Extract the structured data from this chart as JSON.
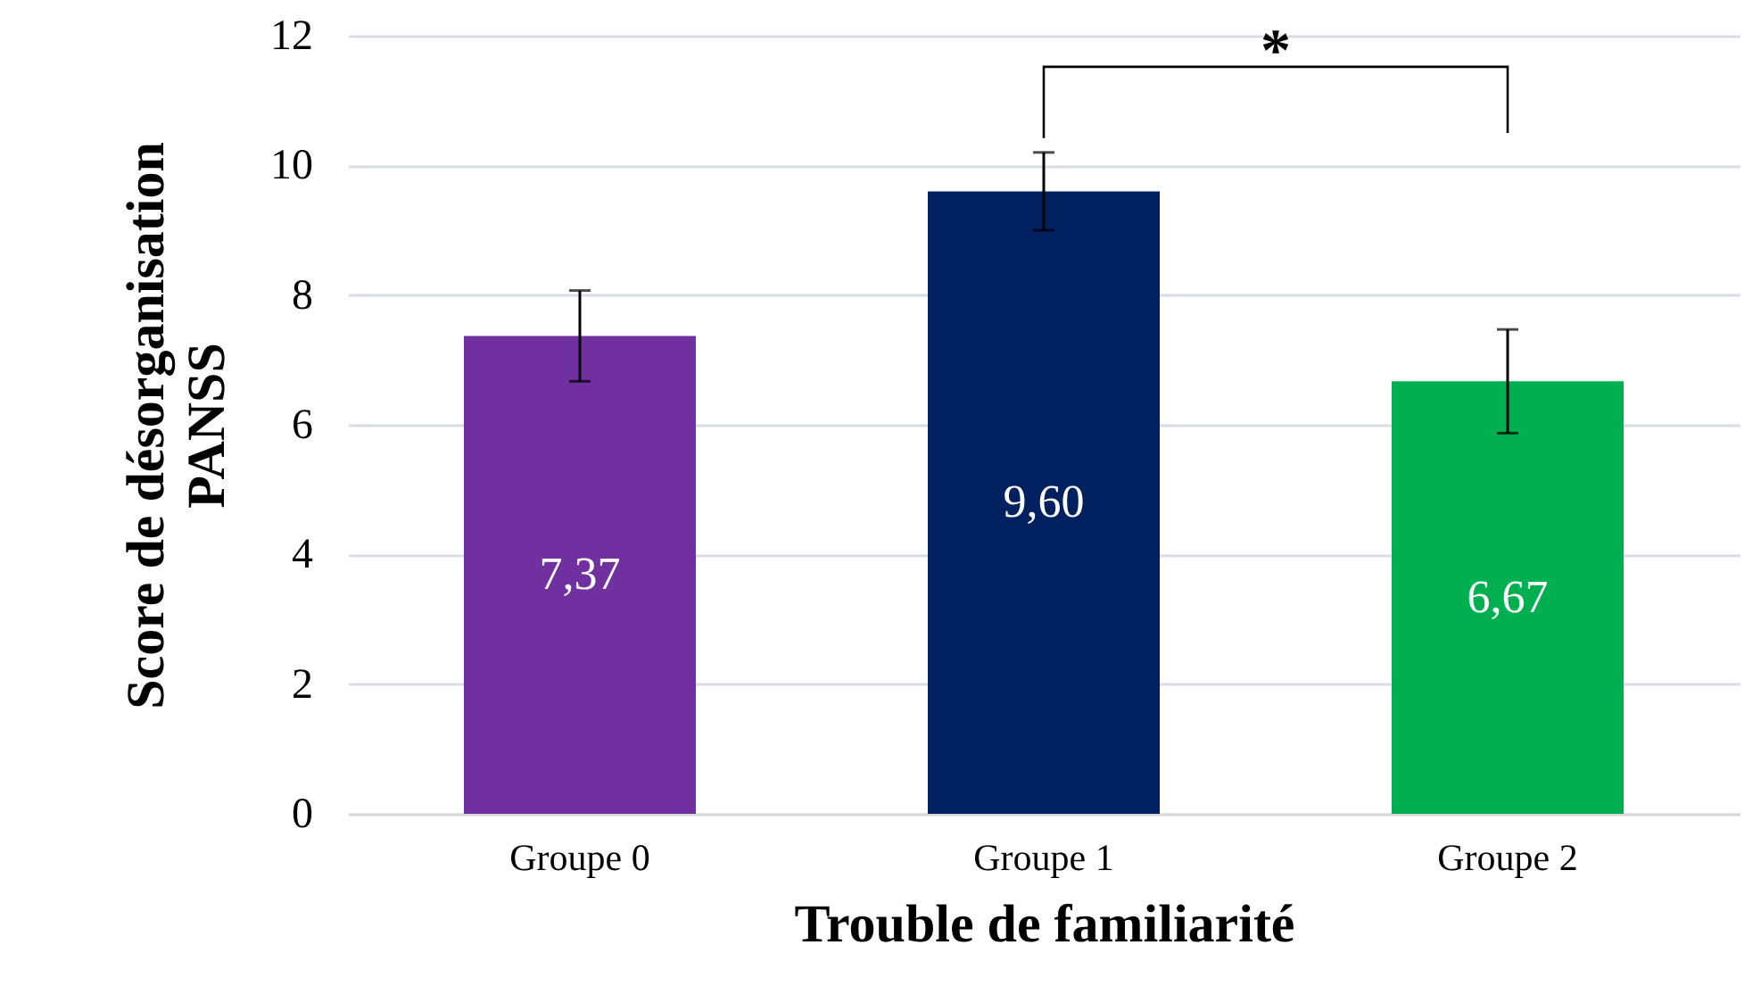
{
  "chart_data": {
    "type": "bar",
    "xlabel": "Trouble de familiarité",
    "ylabel": "Score de désorganisation PANSS",
    "categories": [
      "Groupe 0",
      "Groupe 1",
      "Groupe 2"
    ],
    "values": [
      7.37,
      9.6,
      6.67
    ],
    "colors": [
      "#7030a0",
      "#002060",
      "#00b050"
    ],
    "errors": [
      0.7,
      0.6,
      0.8
    ],
    "value_labels": [
      "7,37",
      "9,60",
      "6,67"
    ],
    "ylim": [
      0,
      12
    ],
    "yticks": [
      0,
      2,
      4,
      6,
      8,
      10,
      12
    ],
    "grid": "y",
    "annotations": [
      "*"
    ]
  }
}
